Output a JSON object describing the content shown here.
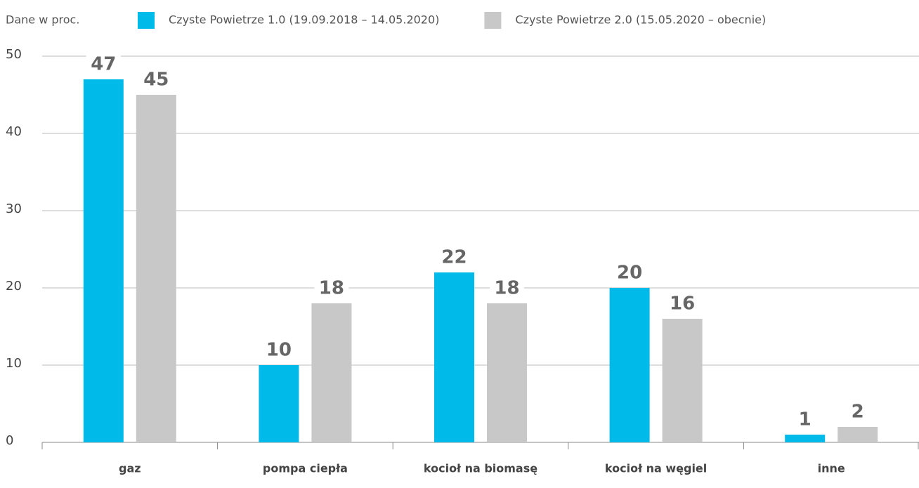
{
  "chart_data": {
    "type": "bar",
    "note": "Dane w proc.",
    "categories": [
      "gaz",
      "pompa ciepła",
      "kocioł na biomasę",
      "kocioł na węgiel",
      "inne"
    ],
    "series": [
      {
        "name": "Czyste Powietrze 1.0 (19.09.2018 – 14.05.2020)",
        "color": "#00bbea",
        "values": [
          47,
          10,
          22,
          20,
          1
        ]
      },
      {
        "name": "Czyste Powietrze 2.0 (15.05.2020 – obecnie)",
        "color": "#c8c8c8",
        "values": [
          45,
          18,
          18,
          16,
          2
        ]
      }
    ],
    "ylim": [
      0,
      50
    ],
    "yticks": [
      0,
      10,
      20,
      30,
      40,
      50
    ],
    "grid": true,
    "legend": "top"
  }
}
